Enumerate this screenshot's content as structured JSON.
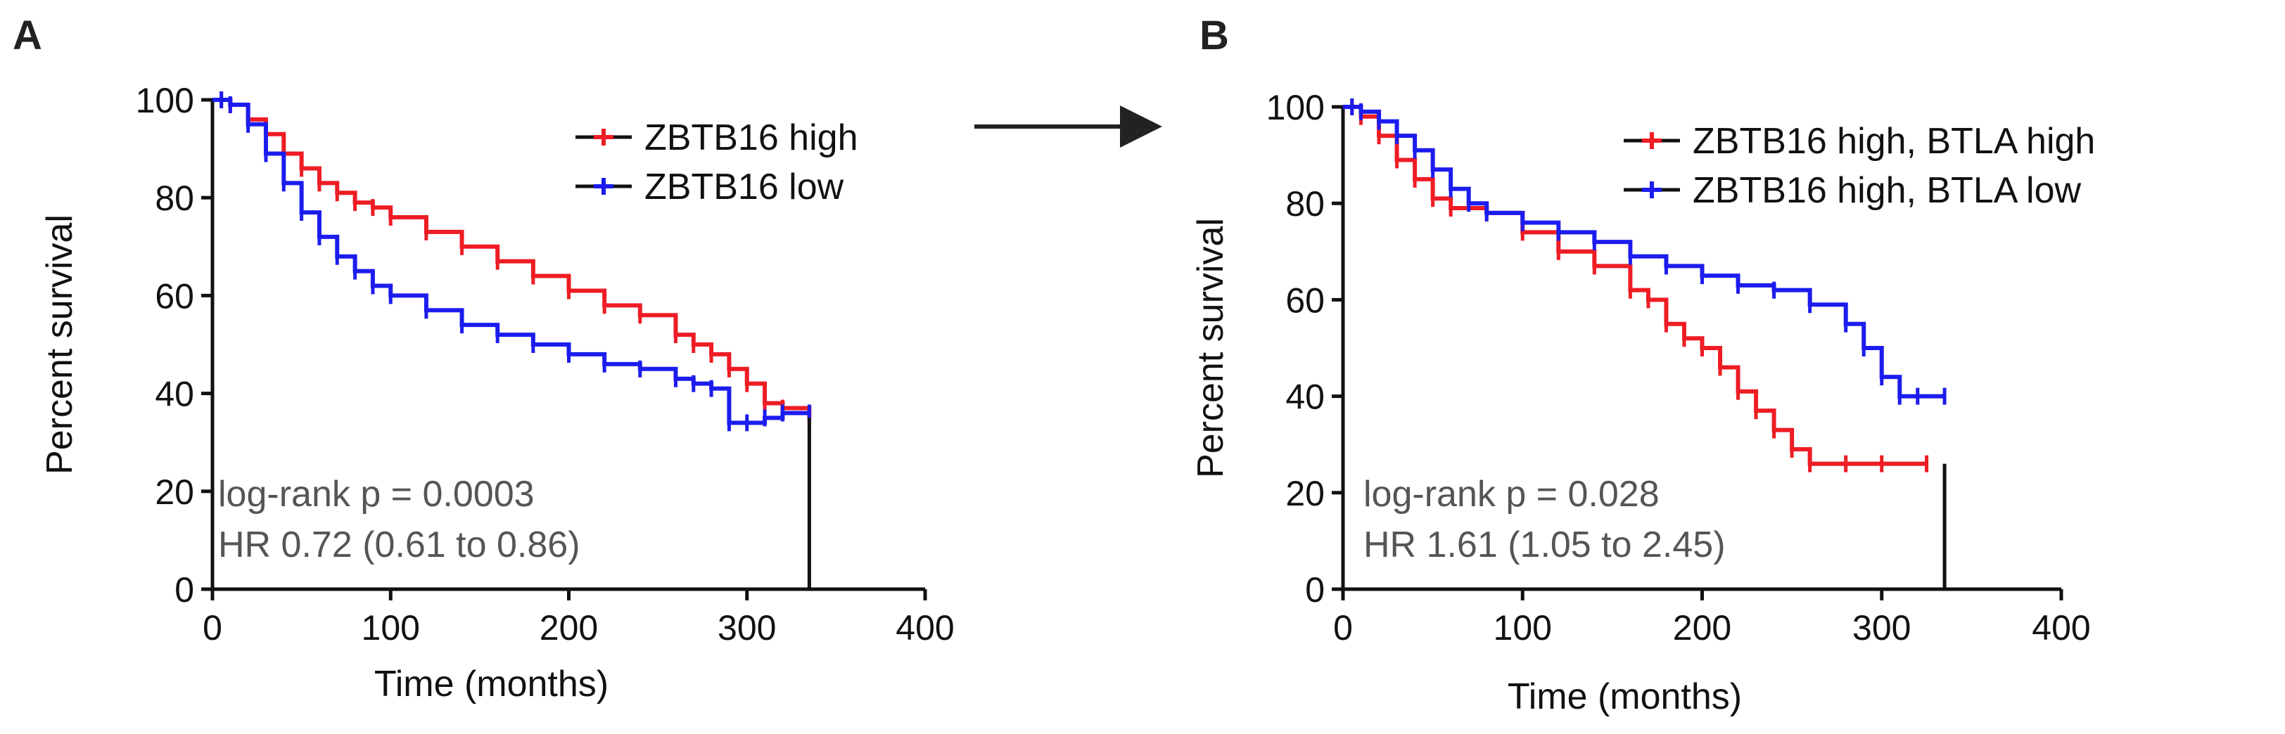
{
  "figure": {
    "connector_arrow": "arrow-right-icon"
  },
  "chart_data": [
    {
      "panel": "A",
      "type": "line",
      "subtype": "kaplan-meier",
      "title": "",
      "xlabel": "Time (months)",
      "ylabel": "Percent survival",
      "xlim": [
        0,
        400
      ],
      "ylim": [
        0,
        100
      ],
      "xticks": [
        "0",
        "100",
        "200",
        "300",
        "400"
      ],
      "yticks": [
        "0",
        "20",
        "40",
        "60",
        "80",
        "100"
      ],
      "annotations": [
        "log-rank p = 0.0003",
        "HR 0.72 (0.61 to 0.86)"
      ],
      "legend_position": "top-right",
      "series": [
        {
          "name": "ZBTB16 high",
          "color": "#ee1c24",
          "x": [
            0,
            5,
            10,
            20,
            30,
            40,
            50,
            60,
            70,
            80,
            90,
            100,
            120,
            140,
            160,
            180,
            200,
            220,
            240,
            260,
            270,
            280,
            290,
            300,
            310,
            320,
            335
          ],
          "y": [
            100,
            100,
            99,
            96,
            93,
            89,
            86,
            83,
            81,
            79,
            78,
            76,
            73,
            70,
            67,
            64,
            61,
            58,
            56,
            52,
            50,
            48,
            45,
            42,
            38,
            37,
            35
          ]
        },
        {
          "name": "ZBTB16 low",
          "color": "#1c1cee",
          "x": [
            0,
            5,
            10,
            20,
            30,
            40,
            50,
            60,
            70,
            80,
            90,
            100,
            120,
            140,
            160,
            180,
            200,
            220,
            240,
            260,
            270,
            280,
            290,
            300,
            310,
            320,
            335
          ],
          "y": [
            100,
            100,
            99,
            95,
            89,
            83,
            77,
            72,
            68,
            65,
            62,
            60,
            57,
            54,
            52,
            50,
            48,
            46,
            45,
            43,
            42,
            41,
            34,
            34,
            35,
            36,
            36
          ]
        }
      ]
    },
    {
      "panel": "B",
      "type": "line",
      "subtype": "kaplan-meier",
      "title": "",
      "xlabel": "Time (months)",
      "ylabel": "Percent survival",
      "xlim": [
        0,
        400
      ],
      "ylim": [
        0,
        100
      ],
      "xticks": [
        "0",
        "100",
        "200",
        "300",
        "400"
      ],
      "yticks": [
        "0",
        "20",
        "40",
        "60",
        "80",
        "100"
      ],
      "annotations": [
        "log-rank p = 0.028",
        "HR 1.61 (1.05 to 2.45)"
      ],
      "legend_position": "top-right",
      "series": [
        {
          "name": "ZBTB16 high, BTLA high",
          "color": "#ee1c24",
          "x": [
            0,
            5,
            10,
            20,
            30,
            40,
            50,
            60,
            80,
            100,
            120,
            140,
            160,
            170,
            180,
            190,
            200,
            210,
            220,
            230,
            240,
            250,
            260,
            280,
            300,
            325
          ],
          "y": [
            100,
            100,
            98,
            94,
            89,
            85,
            81,
            79,
            78,
            74,
            70,
            67,
            62,
            60,
            55,
            52,
            50,
            46,
            41,
            37,
            33,
            29,
            26,
            26,
            26,
            26
          ]
        },
        {
          "name": "ZBTB16 high, BTLA low",
          "color": "#1c1cee",
          "x": [
            0,
            5,
            10,
            20,
            30,
            40,
            50,
            60,
            70,
            80,
            100,
            120,
            140,
            160,
            180,
            200,
            220,
            240,
            260,
            280,
            290,
            300,
            310,
            320,
            335
          ],
          "y": [
            100,
            100,
            99,
            97,
            94,
            91,
            87,
            83,
            80,
            78,
            76,
            74,
            72,
            69,
            67,
            65,
            63,
            62,
            59,
            55,
            50,
            44,
            40,
            40,
            40
          ]
        }
      ]
    }
  ]
}
